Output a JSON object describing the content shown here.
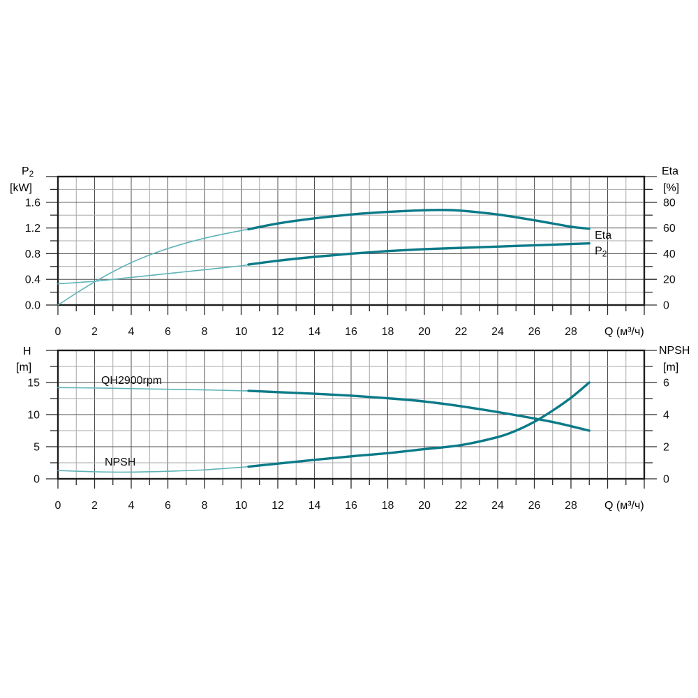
{
  "colors": {
    "background": "#ffffff",
    "curve_thick": "#0b7a88",
    "curve_thin": "#5fb3b8",
    "grid_major": "#4f4f4f",
    "grid_minor": "#a8a8a8",
    "axis_border": "#1c1c1c",
    "tick": "#2a2a2a",
    "text": "#111111"
  },
  "chart_data": [
    {
      "type": "line",
      "title": "Pump power and efficiency curves",
      "x_axis": {
        "label": "Q (м³/ч)",
        "range": [
          0,
          32
        ],
        "minor_step": 1,
        "major_step": 2,
        "ticks": [
          0,
          2,
          4,
          6,
          8,
          10,
          12,
          14,
          16,
          18,
          20,
          22,
          24,
          26,
          28
        ],
        "tick_labels": [
          "0",
          "2",
          "4",
          "6",
          "8",
          "10",
          "12",
          "14",
          "16",
          "18",
          "20",
          "22",
          "24",
          "26",
          "28"
        ]
      },
      "left_axis": {
        "name_main": "P",
        "name_sub": "2",
        "unit": "[kW]",
        "range": [
          0,
          2.0
        ],
        "minor_step": 0.2,
        "major_step": 0.4,
        "ticks": [
          0.0,
          0.4,
          0.8,
          1.2,
          1.6
        ],
        "tick_labels": [
          "0.0",
          "0.4",
          "0.8",
          "1.2",
          "1.6"
        ]
      },
      "right_axis": {
        "name_main": "Eta",
        "name_sub": "",
        "unit": "[%]",
        "range": [
          0,
          100
        ],
        "minor_step": 10,
        "major_step": 20,
        "ticks": [
          0,
          20,
          40,
          60,
          80
        ],
        "tick_labels": [
          "0",
          "20",
          "40",
          "60",
          "80"
        ]
      },
      "series": [
        {
          "name": "Eta",
          "axis": "right",
          "label": {
            "text": "Eta",
            "sub": ""
          },
          "label_at": {
            "x": 29.3,
            "y": 51.5
          },
          "thick_from": 10.4,
          "points": [
            [
              0,
              0
            ],
            [
              2,
              18
            ],
            [
              4,
              33
            ],
            [
              6,
              44
            ],
            [
              8,
              52
            ],
            [
              10,
              58
            ],
            [
              10.4,
              59
            ],
            [
              12,
              63.5
            ],
            [
              14,
              67.5
            ],
            [
              16,
              70.5
            ],
            [
              18,
              72.5
            ],
            [
              20,
              73.8
            ],
            [
              21,
              74
            ],
            [
              22,
              73.5
            ],
            [
              24,
              70.5
            ],
            [
              26,
              66
            ],
            [
              28,
              61
            ],
            [
              29,
              59.5
            ]
          ]
        },
        {
          "name": "P2",
          "axis": "left",
          "label": {
            "text": "P",
            "sub": "2"
          },
          "label_at": {
            "x": 29.3,
            "y": 0.79
          },
          "thick_from": 10.4,
          "points": [
            [
              0,
              0.33
            ],
            [
              2,
              0.37
            ],
            [
              4,
              0.43
            ],
            [
              6,
              0.49
            ],
            [
              8,
              0.55
            ],
            [
              10,
              0.61
            ],
            [
              10.4,
              0.63
            ],
            [
              12,
              0.69
            ],
            [
              14,
              0.75
            ],
            [
              16,
              0.8
            ],
            [
              18,
              0.84
            ],
            [
              20,
              0.87
            ],
            [
              22,
              0.89
            ],
            [
              24,
              0.91
            ],
            [
              26,
              0.93
            ],
            [
              28,
              0.95
            ],
            [
              29,
              0.96
            ]
          ]
        }
      ]
    },
    {
      "type": "line",
      "title": "Pump head and NPSH curves",
      "x_axis": {
        "label": "Q (м³/ч)",
        "range": [
          0,
          32
        ],
        "minor_step": 1,
        "major_step": 2,
        "ticks": [
          0,
          2,
          4,
          6,
          8,
          10,
          12,
          14,
          16,
          18,
          20,
          22,
          24,
          26,
          28
        ],
        "tick_labels": [
          "0",
          "2",
          "4",
          "6",
          "8",
          "10",
          "12",
          "14",
          "16",
          "18",
          "20",
          "22",
          "24",
          "26",
          "28"
        ]
      },
      "left_axis": {
        "name_main": "H",
        "name_sub": "",
        "unit": "[m]",
        "range": [
          0,
          20
        ],
        "minor_step": 2.5,
        "major_step": 5,
        "ticks": [
          0,
          5,
          10,
          15
        ],
        "tick_labels": [
          "0",
          "5",
          "10",
          "15"
        ]
      },
      "right_axis": {
        "name_main": "NPSH",
        "name_sub": "",
        "unit": "[m]",
        "range": [
          0,
          8
        ],
        "minor_step": 1,
        "major_step": 2,
        "ticks": [
          0,
          2,
          4,
          6
        ],
        "tick_labels": [
          "0",
          "2",
          "4",
          "6"
        ]
      },
      "series": [
        {
          "name": "QH2900rpm",
          "axis": "left",
          "label": {
            "text": "QH2900rpm",
            "sub": ""
          },
          "label_at": {
            "x": 2.36,
            "y": 14.8
          },
          "thick_from": 10.4,
          "points": [
            [
              0,
              14.2
            ],
            [
              2,
              14.15
            ],
            [
              4,
              14.05
            ],
            [
              6,
              13.95
            ],
            [
              8,
              13.85
            ],
            [
              10,
              13.72
            ],
            [
              10.4,
              13.7
            ],
            [
              12,
              13.5
            ],
            [
              14,
              13.25
            ],
            [
              16,
              12.95
            ],
            [
              18,
              12.55
            ],
            [
              20,
              12.05
            ],
            [
              22,
              11.3
            ],
            [
              24,
              10.4
            ],
            [
              26,
              9.4
            ],
            [
              27,
              8.85
            ],
            [
              28,
              8.2
            ],
            [
              29,
              7.5
            ]
          ]
        },
        {
          "name": "NPSH",
          "axis": "right",
          "label": {
            "text": "NPSH",
            "sub": ""
          },
          "label_at": {
            "x": 2.55,
            "y": 0.82
          },
          "thick_from": 10.4,
          "points": [
            [
              0,
              0.52
            ],
            [
              2,
              0.44
            ],
            [
              4,
              0.42
            ],
            [
              6,
              0.47
            ],
            [
              8,
              0.56
            ],
            [
              10,
              0.72
            ],
            [
              10.4,
              0.76
            ],
            [
              12,
              0.95
            ],
            [
              14,
              1.18
            ],
            [
              16,
              1.4
            ],
            [
              18,
              1.6
            ],
            [
              20,
              1.85
            ],
            [
              22,
              2.1
            ],
            [
              24,
              2.6
            ],
            [
              25,
              3.0
            ],
            [
              26,
              3.55
            ],
            [
              27,
              4.25
            ],
            [
              28,
              5.05
            ],
            [
              29,
              6.0
            ]
          ]
        }
      ]
    }
  ]
}
